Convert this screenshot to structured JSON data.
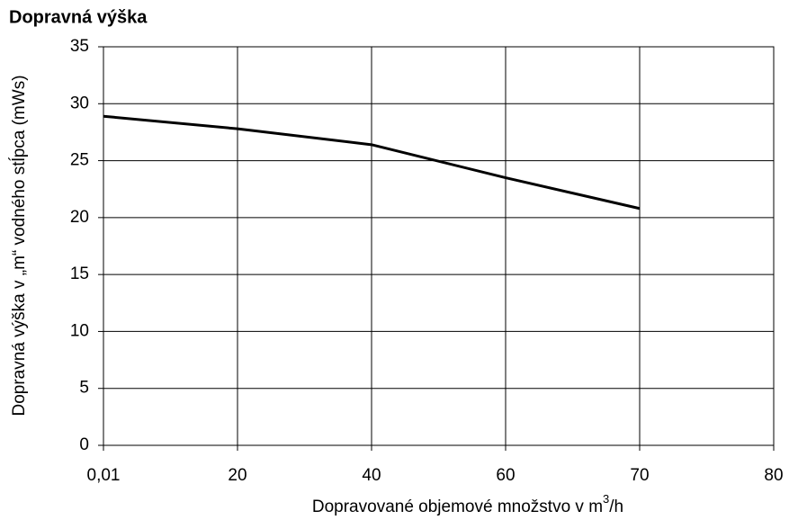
{
  "chart_data": {
    "type": "line",
    "title": "Dopravná výška",
    "y_label": "Dopravná výška v „m“ vodného stĺpca (mWs)",
    "x_label": [
      "Dopravované objemové množstvo v m",
      "3",
      "/h"
    ],
    "categories": [
      "0,01",
      "20",
      "40",
      "60",
      "70",
      "80"
    ],
    "series": [
      {
        "name": null,
        "color": "#000000",
        "values": [
          28.9,
          27.8,
          26.4,
          23.5,
          20.8,
          null
        ]
      }
    ],
    "ylim": [
      0,
      35
    ],
    "yticks": [
      0,
      5,
      10,
      15,
      20,
      25,
      30,
      35
    ],
    "grid": true
  }
}
